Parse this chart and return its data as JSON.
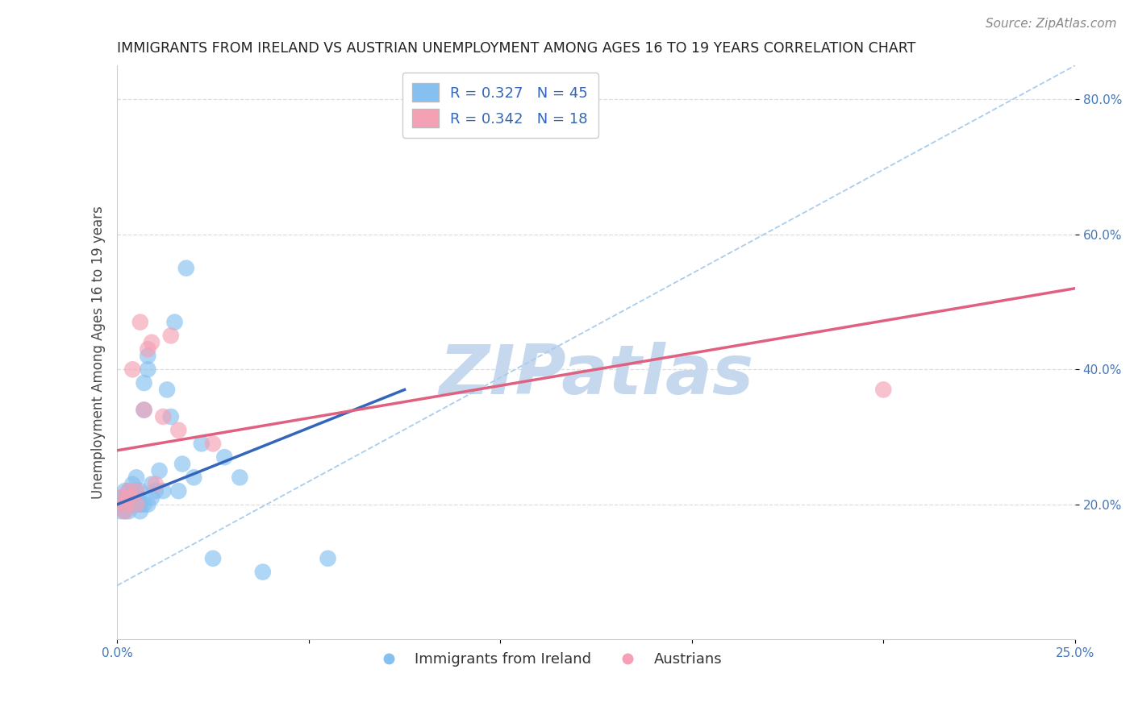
{
  "title": "IMMIGRANTS FROM IRELAND VS AUSTRIAN UNEMPLOYMENT AMONG AGES 16 TO 19 YEARS CORRELATION CHART",
  "source": "Source: ZipAtlas.com",
  "ylabel": "Unemployment Among Ages 16 to 19 years",
  "xlim": [
    0.0,
    0.25
  ],
  "ylim": [
    0.0,
    0.85
  ],
  "xtick_positions": [
    0.0,
    0.05,
    0.1,
    0.15,
    0.2,
    0.25
  ],
  "xticklabels": [
    "0.0%",
    "",
    "",
    "",
    "",
    "25.0%"
  ],
  "ytick_positions": [
    0.2,
    0.4,
    0.6,
    0.8
  ],
  "yticklabels": [
    "20.0%",
    "40.0%",
    "60.0%",
    "80.0%"
  ],
  "blue_R": 0.327,
  "blue_N": 45,
  "pink_R": 0.342,
  "pink_N": 18,
  "blue_color": "#85C0F0",
  "pink_color": "#F4A0B5",
  "blue_line_color": "#3366BB",
  "pink_line_color": "#E06080",
  "ref_line_color": "#AACCEE",
  "legend_label_blue": "Immigrants from Ireland",
  "legend_label_pink": "Austrians",
  "blue_scatter_x": [
    0.001,
    0.001,
    0.001,
    0.002,
    0.002,
    0.002,
    0.002,
    0.003,
    0.003,
    0.003,
    0.003,
    0.004,
    0.004,
    0.004,
    0.005,
    0.005,
    0.005,
    0.005,
    0.006,
    0.006,
    0.006,
    0.007,
    0.007,
    0.007,
    0.008,
    0.008,
    0.008,
    0.009,
    0.009,
    0.01,
    0.011,
    0.012,
    0.013,
    0.014,
    0.015,
    0.016,
    0.017,
    0.018,
    0.02,
    0.022,
    0.025,
    0.028,
    0.032,
    0.038,
    0.055
  ],
  "blue_scatter_y": [
    0.21,
    0.2,
    0.19,
    0.22,
    0.21,
    0.19,
    0.2,
    0.21,
    0.2,
    0.19,
    0.22,
    0.23,
    0.21,
    0.2,
    0.24,
    0.22,
    0.21,
    0.2,
    0.22,
    0.2,
    0.19,
    0.38,
    0.34,
    0.2,
    0.42,
    0.4,
    0.2,
    0.23,
    0.21,
    0.22,
    0.25,
    0.22,
    0.37,
    0.33,
    0.47,
    0.22,
    0.26,
    0.55,
    0.24,
    0.29,
    0.12,
    0.27,
    0.24,
    0.1,
    0.12
  ],
  "pink_scatter_x": [
    0.001,
    0.002,
    0.002,
    0.003,
    0.003,
    0.004,
    0.005,
    0.005,
    0.006,
    0.007,
    0.008,
    0.009,
    0.01,
    0.012,
    0.014,
    0.016,
    0.025,
    0.2
  ],
  "pink_scatter_y": [
    0.21,
    0.2,
    0.19,
    0.22,
    0.21,
    0.4,
    0.2,
    0.22,
    0.47,
    0.34,
    0.43,
    0.44,
    0.23,
    0.33,
    0.45,
    0.31,
    0.29,
    0.37
  ],
  "blue_trend_x": [
    0.0,
    0.075
  ],
  "blue_trend_y": [
    0.2,
    0.37
  ],
  "pink_trend_x": [
    0.0,
    0.25
  ],
  "pink_trend_y": [
    0.28,
    0.52
  ],
  "ref_line_x": [
    0.0,
    0.25
  ],
  "ref_line_y": [
    0.08,
    0.85
  ],
  "grid_color": "#DDDDDD",
  "background_color": "#FFFFFF",
  "watermark_text": "ZIPatlas",
  "watermark_color": "#C5D8ED",
  "title_fontsize": 12.5,
  "axis_label_fontsize": 12,
  "tick_fontsize": 11,
  "legend_fontsize": 13,
  "source_fontsize": 11
}
